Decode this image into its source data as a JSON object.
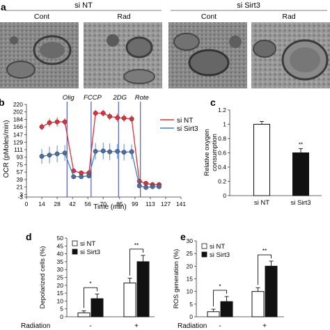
{
  "panels": {
    "a": {
      "letter": "a",
      "groups": [
        {
          "label": "si NT",
          "conditions": [
            "Cont",
            "Rad"
          ]
        },
        {
          "label": "si Sirt3",
          "conditions": [
            "Cont",
            "Rad"
          ]
        }
      ]
    },
    "b": {
      "letter": "b",
      "ylabel": "OCR (pMoles/min)",
      "xlabel": "Time (min)",
      "injections": [
        "Olig",
        "FCCP",
        "2DG",
        "Rote"
      ],
      "legend": [
        "si NT",
        "si Sirt3"
      ]
    },
    "c": {
      "letter": "c"
    },
    "d": {
      "letter": "d",
      "legend": [
        "si NT",
        "si Sirt3"
      ],
      "xrow_label": "Radiation",
      "signs": [
        "-",
        "+"
      ]
    },
    "e": {
      "letter": "e",
      "legend": [
        "si NT",
        "si Sirt3"
      ],
      "xrow_label": "Radiation",
      "signs": [
        "-",
        "+"
      ]
    }
  },
  "colors": {
    "si_nt": "#d9323a",
    "si_sirt3": "#3f7fd1",
    "inject_line": "#2e3fa8",
    "bar_black": "#111111"
  },
  "chart_data": [
    {
      "panel": "b",
      "type": "line",
      "xlabel": "Time (min)",
      "ylabel": "OCR (pMoles/min)",
      "x_ticks": [
        0,
        14,
        28,
        42,
        56,
        70,
        85,
        99,
        113,
        127,
        141
      ],
      "y_ticks": [
        -3,
        3,
        21,
        39,
        57,
        75,
        93,
        111,
        129,
        147,
        166,
        184,
        202,
        220
      ],
      "xlim": [
        0,
        141
      ],
      "ylim": [
        -3,
        220
      ],
      "injections": [
        {
          "label": "Olig",
          "x": 37
        },
        {
          "label": "FCCP",
          "x": 59
        },
        {
          "label": "2DG",
          "x": 84
        },
        {
          "label": "Rote",
          "x": 104
        }
      ],
      "series": [
        {
          "name": "si NT",
          "x": [
            14,
            21,
            28,
            35,
            43,
            50,
            57,
            63,
            70,
            76,
            83,
            89,
            96,
            103,
            109,
            115,
            121
          ],
          "y": [
            166,
            176,
            178,
            178,
            60,
            55,
            55,
            199,
            199,
            191,
            188,
            187,
            185,
            35,
            30,
            27,
            27
          ],
          "err": [
            8,
            10,
            11,
            9,
            5,
            5,
            5,
            8,
            8,
            9,
            10,
            9,
            9,
            5,
            5,
            4,
            4
          ]
        },
        {
          "name": "si Sirt3",
          "x": [
            14,
            21,
            28,
            35,
            43,
            50,
            57,
            63,
            70,
            76,
            83,
            89,
            96,
            103,
            109,
            115,
            121
          ],
          "y": [
            95,
            98,
            101,
            103,
            46,
            46,
            48,
            107,
            108,
            106,
            107,
            105,
            106,
            24,
            20,
            22,
            22
          ],
          "err": [
            18,
            20,
            20,
            19,
            5,
            5,
            5,
            20,
            20,
            20,
            18,
            20,
            18,
            5,
            4,
            4,
            4
          ]
        }
      ]
    },
    {
      "panel": "c",
      "type": "bar",
      "ylabel": "Relative oxygen consumption",
      "categories": [
        "si NT",
        "si Sirt3"
      ],
      "values": [
        1.0,
        0.6
      ],
      "errors": [
        0.04,
        0.06
      ],
      "fills": [
        "#ffffff",
        "#111111"
      ],
      "ylim": [
        0,
        1.2
      ],
      "y_ticks": [
        0,
        0.2,
        0.4,
        0.6,
        0.8,
        1,
        1.2
      ],
      "significance": "**"
    },
    {
      "panel": "d",
      "type": "bar",
      "ylabel": "Depolarized cells (%)",
      "categories": [
        "-",
        "+"
      ],
      "series": [
        {
          "name": "si NT",
          "values": [
            2.5,
            21.5
          ],
          "errors": [
            1.3,
            3.0
          ]
        },
        {
          "name": "si Sirt3",
          "values": [
            11.5,
            35
          ],
          "errors": [
            3.0,
            4.0
          ]
        }
      ],
      "ylim": [
        0,
        50
      ],
      "y_ticks": [
        0,
        5,
        10,
        15,
        20,
        25,
        30,
        35,
        40,
        45,
        50
      ],
      "significance": [
        "*",
        "**"
      ]
    },
    {
      "panel": "e",
      "type": "bar",
      "ylabel": "ROS generation (%)",
      "categories": [
        "-",
        "+"
      ],
      "series": [
        {
          "name": "si NT",
          "values": [
            2,
            10
          ],
          "errors": [
            1.0,
            1.5
          ]
        },
        {
          "name": "si Sirt3",
          "values": [
            6,
            20
          ],
          "errors": [
            2.0,
            2.0
          ]
        }
      ],
      "ylim": [
        0,
        30
      ],
      "y_ticks": [
        0,
        5,
        10,
        15,
        20,
        25,
        30
      ],
      "significance": [
        "*",
        "**"
      ]
    }
  ]
}
